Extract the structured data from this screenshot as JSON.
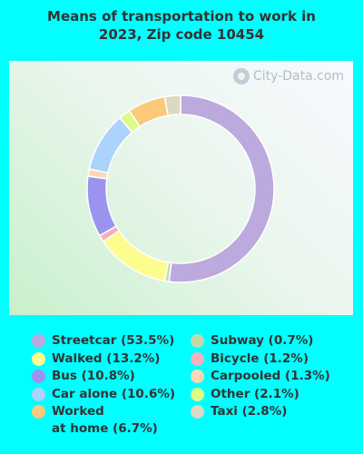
{
  "chart_data": {
    "type": "pie",
    "title_line1": "Means of transportation to work in",
    "title_line2": "2023, Zip code 10454",
    "watermark": "City-Data.com",
    "slices": [
      {
        "label": "Streetcar",
        "value": 53.5,
        "display": "Streetcar (53.5%)",
        "color": "#bca9dd"
      },
      {
        "label": "Subway",
        "value": 0.7,
        "display": "Subway (0.7%)",
        "color": "#c4d9a9"
      },
      {
        "label": "Walked",
        "value": 13.2,
        "display": "Walked (13.2%)",
        "color": "#fdfc8e"
      },
      {
        "label": "Bicycle",
        "value": 1.2,
        "display": "Bicycle (1.2%)",
        "color": "#f2b1bb"
      },
      {
        "label": "Bus",
        "value": 10.8,
        "display": "Bus (10.8%)",
        "color": "#9b94ee"
      },
      {
        "label": "Carpooled",
        "value": 1.3,
        "display": "Carpooled (1.3%)",
        "color": "#fdd8b3"
      },
      {
        "label": "Car alone",
        "value": 10.6,
        "display": "Car alone (10.6%)",
        "color": "#abd3fb"
      },
      {
        "label": "Other",
        "value": 2.1,
        "display": "Other (2.1%)",
        "color": "#defb8a"
      },
      {
        "label": "Worked at home",
        "value": 6.7,
        "display": "Worked\nat home (6.7%)",
        "color": "#fbc97a"
      },
      {
        "label": "Taxi",
        "value": 2.8,
        "display": "Taxi (2.8%)",
        "color": "#dcd9c2"
      }
    ],
    "legend_placement": "bottom"
  }
}
